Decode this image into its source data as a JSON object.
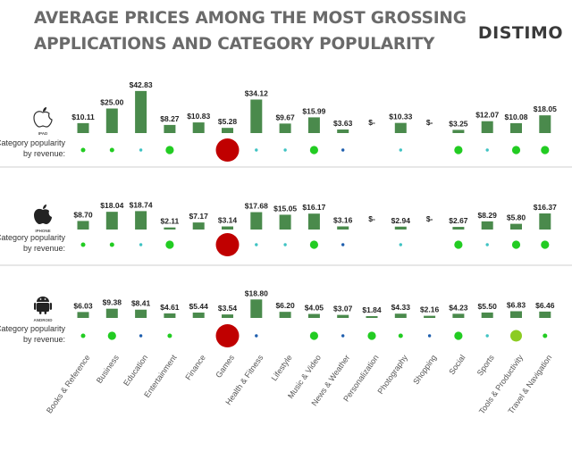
{
  "header": {
    "title_line1": "AVERAGE PRICES AMONG THE MOST GROSSING",
    "title_line2": "APPLICATIONS AND CATEGORY POPULARITY",
    "brand": "DISTIMO"
  },
  "colors": {
    "bar": "#4a8a4c",
    "dot_green": "#22cc22",
    "dot_cyan": "#3fc3c3",
    "dot_blue": "#1f5fae",
    "dot_lime": "#8ccc22",
    "dot_red": "#c00000",
    "divider": "#cfcfcf"
  },
  "chart_data": {
    "type": "bar",
    "categories": [
      "Books & Reference",
      "Business",
      "Education",
      "Entertainment",
      "Finance",
      "Games",
      "Health & Fitness",
      "Lifestyle",
      "Music & Video",
      "News & Weather",
      "Personalization",
      "Photography",
      "Shopping",
      "Social",
      "Sports",
      "Tools & Productivity",
      "Travel & Navigation"
    ],
    "popularity_label_line1": "Category popularity",
    "popularity_label_line2": "by revenue:",
    "series": [
      {
        "name": "IPAD",
        "icon": "apple-icon",
        "values": [
          10.11,
          25.0,
          42.83,
          8.27,
          10.83,
          5.28,
          34.12,
          9.67,
          15.99,
          3.63,
          null,
          10.33,
          null,
          3.25,
          12.07,
          10.08,
          18.05
        ],
        "labels": [
          "$10.11",
          "$25.00",
          "$42.83",
          "$8.27",
          "$10.83",
          "$5.28",
          "$34.12",
          "$9.67",
          "$15.99",
          "$3.63",
          "$-",
          "$10.33",
          "$-",
          "$3.25",
          "$12.07",
          "$10.08",
          "$18.05"
        ],
        "popularity": [
          {
            "color": "dot_green",
            "size": "small"
          },
          {
            "color": "dot_green",
            "size": "small"
          },
          {
            "color": "dot_cyan",
            "size": "tiny"
          },
          {
            "color": "dot_green",
            "size": "medium"
          },
          null,
          {
            "color": "dot_red",
            "size": "huge"
          },
          {
            "color": "dot_cyan",
            "size": "tiny"
          },
          {
            "color": "dot_cyan",
            "size": "tiny"
          },
          {
            "color": "dot_green",
            "size": "medium"
          },
          {
            "color": "dot_blue",
            "size": "tiny"
          },
          null,
          {
            "color": "dot_cyan",
            "size": "tiny"
          },
          null,
          {
            "color": "dot_green",
            "size": "medium"
          },
          {
            "color": "dot_cyan",
            "size": "tiny"
          },
          {
            "color": "dot_green",
            "size": "medium"
          },
          {
            "color": "dot_green",
            "size": "medium"
          }
        ]
      },
      {
        "name": "IPHONE",
        "icon": "apple-icon",
        "values": [
          8.7,
          18.04,
          18.74,
          2.11,
          7.17,
          3.14,
          17.68,
          15.05,
          16.17,
          3.16,
          null,
          2.94,
          null,
          2.67,
          8.29,
          5.8,
          16.37
        ],
        "labels": [
          "$8.70",
          "$18.04",
          "$18.74",
          "$2.11",
          "$7.17",
          "$3.14",
          "$17.68",
          "$15.05",
          "$16.17",
          "$3.16",
          "$-",
          "$2.94",
          "$-",
          "$2.67",
          "$8.29",
          "$5.80",
          "$16.37"
        ],
        "popularity": [
          {
            "color": "dot_green",
            "size": "small"
          },
          {
            "color": "dot_green",
            "size": "small"
          },
          {
            "color": "dot_cyan",
            "size": "tiny"
          },
          {
            "color": "dot_green",
            "size": "medium"
          },
          null,
          {
            "color": "dot_red",
            "size": "huge"
          },
          {
            "color": "dot_cyan",
            "size": "tiny"
          },
          {
            "color": "dot_cyan",
            "size": "tiny"
          },
          {
            "color": "dot_green",
            "size": "medium"
          },
          {
            "color": "dot_blue",
            "size": "tiny"
          },
          null,
          {
            "color": "dot_cyan",
            "size": "tiny"
          },
          null,
          {
            "color": "dot_green",
            "size": "medium"
          },
          {
            "color": "dot_cyan",
            "size": "tiny"
          },
          {
            "color": "dot_green",
            "size": "medium"
          },
          {
            "color": "dot_green",
            "size": "medium"
          }
        ]
      },
      {
        "name": "ANDROID",
        "icon": "android-icon",
        "values": [
          6.03,
          9.38,
          8.41,
          4.61,
          5.44,
          3.54,
          18.8,
          6.2,
          4.05,
          3.07,
          1.84,
          4.33,
          2.16,
          4.23,
          5.5,
          6.83,
          6.46
        ],
        "labels": [
          "$6.03",
          "$9.38",
          "$8.41",
          "$4.61",
          "$5.44",
          "$3.54",
          "$18.80",
          "$6.20",
          "$4.05",
          "$3.07",
          "$1.84",
          "$4.33",
          "$2.16",
          "$4.23",
          "$5.50",
          "$6.83",
          "$6.46"
        ],
        "popularity": [
          {
            "color": "dot_green",
            "size": "small"
          },
          {
            "color": "dot_green",
            "size": "medium"
          },
          {
            "color": "dot_blue",
            "size": "tiny"
          },
          {
            "color": "dot_green",
            "size": "small"
          },
          null,
          {
            "color": "dot_red",
            "size": "huge"
          },
          {
            "color": "dot_blue",
            "size": "tiny"
          },
          null,
          {
            "color": "dot_green",
            "size": "medium"
          },
          {
            "color": "dot_blue",
            "size": "tiny"
          },
          {
            "color": "dot_green",
            "size": "medium"
          },
          {
            "color": "dot_green",
            "size": "small"
          },
          {
            "color": "dot_blue",
            "size": "tiny"
          },
          {
            "color": "dot_green",
            "size": "medium"
          },
          {
            "color": "dot_cyan",
            "size": "tiny"
          },
          {
            "color": "dot_lime",
            "size": "large"
          },
          {
            "color": "dot_green",
            "size": "small"
          }
        ]
      }
    ]
  }
}
